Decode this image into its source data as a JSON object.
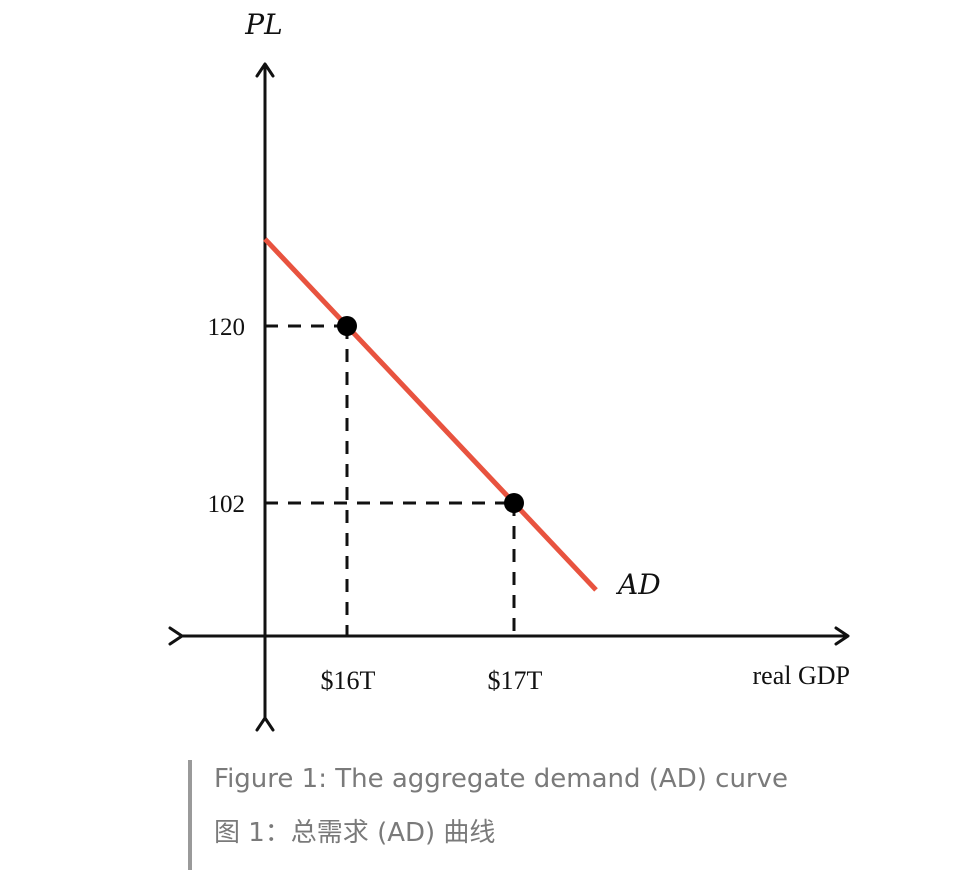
{
  "chart_data": {
    "type": "line",
    "ylabel": "PL",
    "xlabel": "real GDP",
    "series": [
      {
        "name": "AD",
        "color": "#e8533f",
        "points": [
          {
            "x": 16,
            "y": 120
          },
          {
            "x": 17,
            "y": 102
          }
        ]
      }
    ],
    "marked_points": [
      {
        "x": 16,
        "y": 120,
        "x_label": "$16T",
        "y_label": "120"
      },
      {
        "x": 17,
        "y": 102,
        "x_label": "$17T",
        "y_label": "102"
      }
    ],
    "reference_lines": "dashed",
    "grid": false,
    "legend": "none"
  },
  "caption": {
    "english": "Figure 1: The aggregate demand (AD) curve",
    "chinese": "图 1：总需求 (AD) 曲线"
  },
  "colors": {
    "curve": "#e8533f",
    "axis": "#111111",
    "caption_text": "#7a7a7a",
    "caption_bar": "#9a9a9a"
  }
}
